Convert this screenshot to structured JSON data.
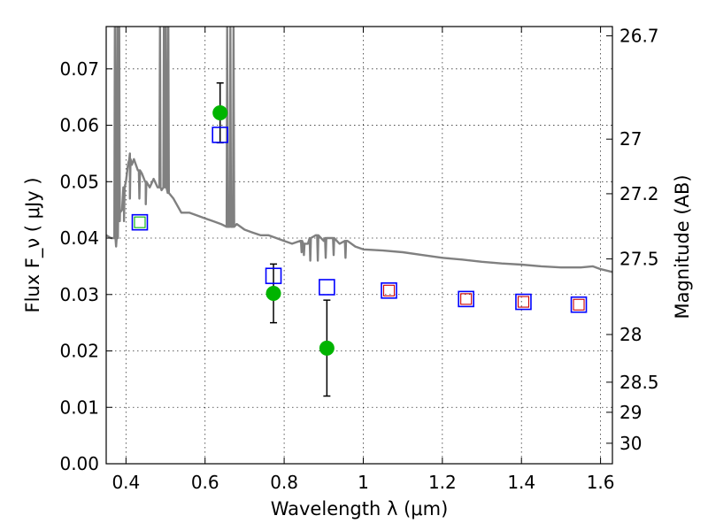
{
  "chart_data": {
    "type": "scatter",
    "title": "",
    "xlabel": "Wavelength  λ (μm)",
    "ylabel": "Flux  F_ν  ( μJy )",
    "ylabel_right": "Magnitude (AB)",
    "xlim": [
      0.35,
      1.63
    ],
    "ylim": [
      0.0,
      0.0775
    ],
    "grid": true,
    "x_ticks": [
      0.4,
      0.6,
      0.8,
      1.0,
      1.2,
      1.4,
      1.6
    ],
    "x_tick_labels": [
      "0.4",
      "0.6",
      "0.8",
      "1",
      "1.2",
      "1.4",
      "1.6"
    ],
    "y_ticks": [
      0.0,
      0.01,
      0.02,
      0.03,
      0.04,
      0.05,
      0.06,
      0.07
    ],
    "y_tick_labels": [
      "0.00",
      "0.01",
      "0.02",
      "0.03",
      "0.04",
      "0.05",
      "0.06",
      "0.07"
    ],
    "right_ticks": [
      {
        "label": "26.7",
        "mag": 26.7
      },
      {
        "label": "27",
        "mag": 27.0
      },
      {
        "label": "27.2",
        "mag": 27.2
      },
      {
        "label": "27.5",
        "mag": 27.5
      },
      {
        "label": "28",
        "mag": 28.0
      },
      {
        "label": "28.5",
        "mag": 28.5
      },
      {
        "label": "29",
        "mag": 29.0
      },
      {
        "label": "30",
        "mag": 30.0
      }
    ],
    "series": [
      {
        "kind": "model_spectrum",
        "color": "#808080",
        "points": [
          [
            0.35,
            0.0405
          ],
          [
            0.362,
            0.04
          ],
          [
            0.375,
            0.0385
          ],
          [
            0.38,
            0.043
          ],
          [
            0.385,
            0.0445
          ],
          [
            0.39,
            0.045
          ],
          [
            0.395,
            0.049
          ],
          [
            0.4,
            0.05
          ],
          [
            0.405,
            0.053
          ],
          [
            0.41,
            0.055
          ],
          [
            0.415,
            0.053
          ],
          [
            0.42,
            0.054
          ],
          [
            0.43,
            0.052
          ],
          [
            0.44,
            0.0515
          ],
          [
            0.45,
            0.05
          ],
          [
            0.46,
            0.049
          ],
          [
            0.47,
            0.0505
          ],
          [
            0.48,
            0.049
          ],
          [
            0.49,
            0.0485
          ],
          [
            0.5,
            0.05
          ],
          [
            0.52,
            0.047
          ],
          [
            0.54,
            0.0445
          ],
          [
            0.56,
            0.0445
          ],
          [
            0.58,
            0.044
          ],
          [
            0.6,
            0.0435
          ],
          [
            0.62,
            0.043
          ],
          [
            0.64,
            0.0425
          ],
          [
            0.66,
            0.042
          ],
          [
            0.68,
            0.0425
          ],
          [
            0.7,
            0.0415
          ],
          [
            0.72,
            0.041
          ],
          [
            0.74,
            0.0405
          ],
          [
            0.76,
            0.0405
          ],
          [
            0.78,
            0.04
          ],
          [
            0.8,
            0.0395
          ],
          [
            0.82,
            0.039
          ],
          [
            0.84,
            0.0395
          ],
          [
            0.86,
            0.039
          ],
          [
            0.88,
            0.0405
          ],
          [
            0.9,
            0.0395
          ],
          [
            0.92,
            0.04
          ],
          [
            0.94,
            0.039
          ],
          [
            0.96,
            0.0395
          ],
          [
            0.98,
            0.0385
          ],
          [
            1.0,
            0.038
          ],
          [
            1.05,
            0.0378
          ],
          [
            1.1,
            0.0375
          ],
          [
            1.15,
            0.037
          ],
          [
            1.2,
            0.0365
          ],
          [
            1.25,
            0.0362
          ],
          [
            1.3,
            0.0358
          ],
          [
            1.35,
            0.0355
          ],
          [
            1.4,
            0.0353
          ],
          [
            1.45,
            0.035
          ],
          [
            1.5,
            0.0348
          ],
          [
            1.55,
            0.0348
          ],
          [
            1.58,
            0.035
          ],
          [
            1.6,
            0.0345
          ],
          [
            1.63,
            0.034
          ]
        ],
        "emission_lines": [
          {
            "x": 0.372,
            "peak": 0.0775,
            "base": 0.04
          },
          {
            "x": 0.378,
            "peak": 0.0775,
            "base": 0.04
          },
          {
            "x": 0.383,
            "peak": 0.0775,
            "base": 0.043
          },
          {
            "x": 0.486,
            "peak": 0.0775,
            "base": 0.049
          },
          {
            "x": 0.496,
            "peak": 0.0775,
            "base": 0.049
          },
          {
            "x": 0.501,
            "peak": 0.0775,
            "base": 0.049
          },
          {
            "x": 0.507,
            "peak": 0.0775,
            "base": 0.048
          },
          {
            "x": 0.656,
            "peak": 0.0775,
            "base": 0.042
          },
          {
            "x": 0.664,
            "peak": 0.0775,
            "base": 0.042
          },
          {
            "x": 0.672,
            "peak": 0.0775,
            "base": 0.042
          }
        ],
        "absorption_lines": [
          {
            "x": 0.395,
            "depth": 0.043,
            "base": 0.049
          },
          {
            "x": 0.41,
            "depth": 0.047,
            "base": 0.054
          },
          {
            "x": 0.434,
            "depth": 0.047,
            "base": 0.052
          },
          {
            "x": 0.45,
            "depth": 0.046,
            "base": 0.05
          },
          {
            "x": 0.844,
            "depth": 0.0375,
            "base": 0.0395
          },
          {
            "x": 0.85,
            "depth": 0.037,
            "base": 0.039
          },
          {
            "x": 0.866,
            "depth": 0.036,
            "base": 0.04
          },
          {
            "x": 0.885,
            "depth": 0.036,
            "base": 0.0405
          },
          {
            "x": 0.905,
            "depth": 0.0365,
            "base": 0.04
          },
          {
            "x": 0.925,
            "depth": 0.037,
            "base": 0.04
          },
          {
            "x": 0.955,
            "depth": 0.0365,
            "base": 0.0395
          }
        ]
      },
      {
        "kind": "observed",
        "marker": "circle",
        "color": "#00b400",
        "points": [
          {
            "x": 0.638,
            "y": 0.0622,
            "err": 0.0053
          },
          {
            "x": 0.773,
            "y": 0.0302,
            "err": 0.0052
          },
          {
            "x": 0.908,
            "y": 0.0205,
            "err": 0.0085
          }
        ]
      },
      {
        "kind": "model_photometry",
        "marker": "square",
        "color": "#0000ff",
        "points": [
          {
            "x": 0.435,
            "y": 0.0428
          },
          {
            "x": 0.638,
            "y": 0.0583
          },
          {
            "x": 0.773,
            "y": 0.0333
          },
          {
            "x": 0.908,
            "y": 0.0313
          },
          {
            "x": 1.065,
            "y": 0.0307
          },
          {
            "x": 1.26,
            "y": 0.0292
          },
          {
            "x": 1.405,
            "y": 0.0287
          },
          {
            "x": 1.545,
            "y": 0.0282
          }
        ]
      },
      {
        "kind": "inner_markers",
        "marker": "square",
        "points": [
          {
            "x": 0.435,
            "y": 0.0428,
            "color": "#00b400"
          },
          {
            "x": 1.065,
            "y": 0.0307,
            "color": "#cc0000"
          },
          {
            "x": 1.26,
            "y": 0.0292,
            "color": "#cc0000"
          },
          {
            "x": 1.405,
            "y": 0.0287,
            "color": "#cc0000"
          },
          {
            "x": 1.545,
            "y": 0.0282,
            "color": "#cc0000"
          }
        ]
      }
    ]
  }
}
